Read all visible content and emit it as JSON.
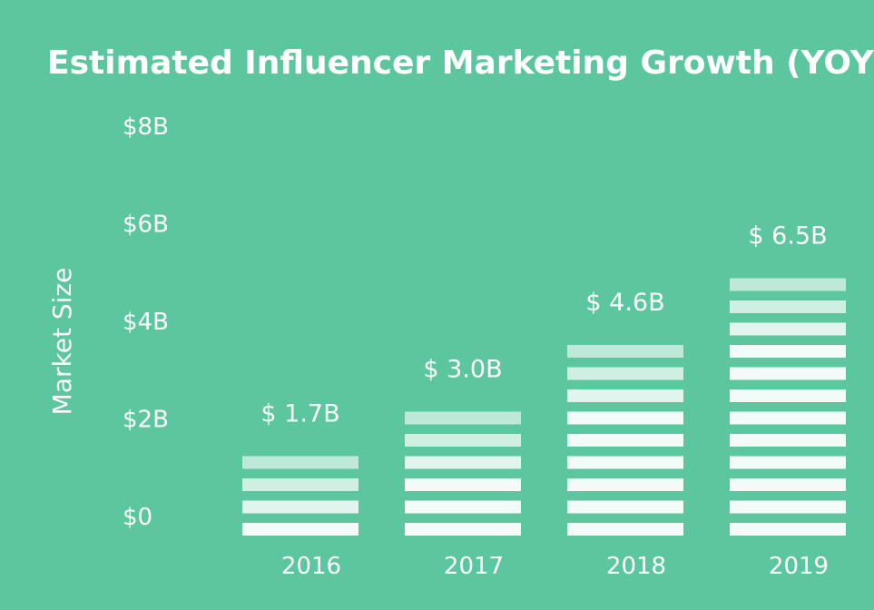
{
  "colors": {
    "background": "#5cc69f",
    "bar_stripe": "#f2fbf7",
    "text": "#ffffff"
  },
  "chart_data": {
    "type": "bar",
    "title": "Estimated Influencer Marketing Growth (YOY)",
    "xlabel": "",
    "ylabel": "Market Size",
    "categories": [
      "2016",
      "2017",
      "2018",
      "2019"
    ],
    "values": [
      1.7,
      3.0,
      4.6,
      6.5
    ],
    "value_labels": [
      "$ 1.7B",
      "$ 3.0B",
      "$ 4.6B",
      "$ 6.5B"
    ],
    "unit": "billion USD",
    "yticks": [
      0,
      2,
      4,
      6,
      8
    ],
    "ytick_labels": [
      "$0",
      "$2B",
      "$4B",
      "$6B",
      "$8B"
    ],
    "ylim": [
      0,
      8
    ],
    "grid": false,
    "legend": "none"
  }
}
